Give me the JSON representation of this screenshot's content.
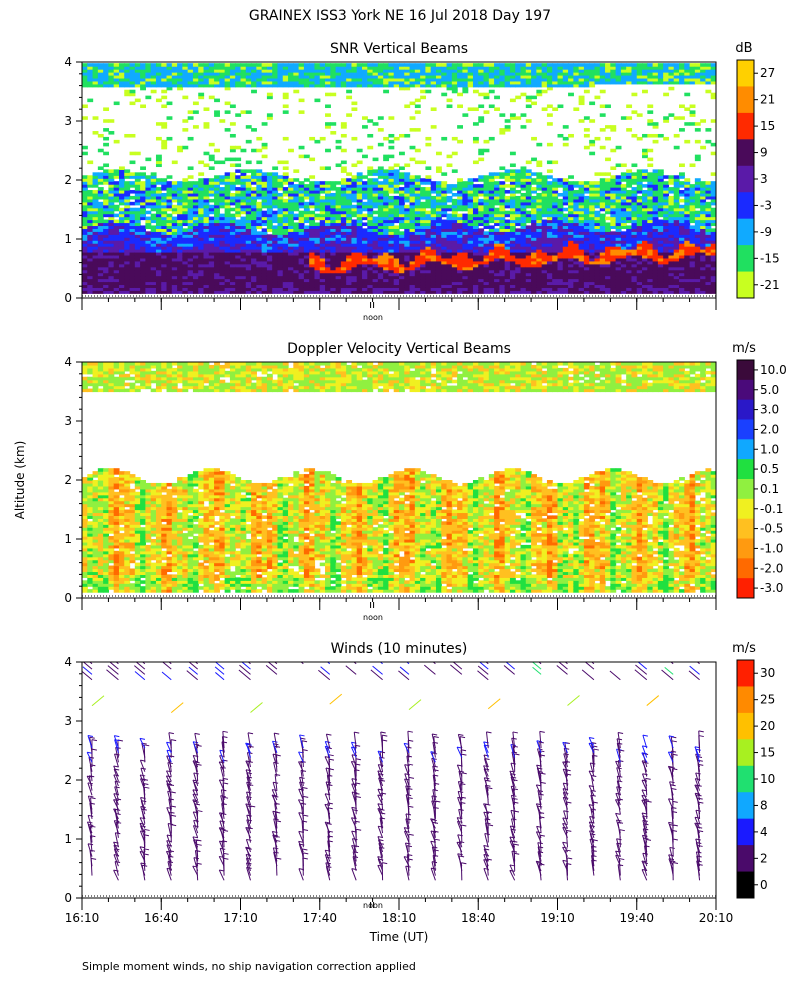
{
  "title": "GRAINEX ISS3 York NE  16 Jul 2018 Day 197",
  "y_axis_label": "Altitude (km)",
  "x_axis_label": "Time (UT)",
  "footnote": "Simple moment winds, no ship navigation correction applied",
  "noon_label": "noon",
  "altitude_ticks": [
    "0",
    "1",
    "2",
    "3",
    "4"
  ],
  "time_ticks": [
    "16:10",
    "16:40",
    "17:10",
    "17:40",
    "18:10",
    "18:40",
    "19:10",
    "19:40",
    "20:10"
  ],
  "chart_data": [
    {
      "type": "heatmap",
      "title": "SNR Vertical Beams",
      "xlabel": "",
      "ylabel": "Altitude (km)",
      "x_range": [
        "16:10",
        "20:10"
      ],
      "ylim": [
        0,
        4
      ],
      "colorbar": {
        "unit": "dB",
        "labels": [
          "27",
          "21",
          "15",
          "9",
          "3",
          "-3",
          "-9",
          "-15",
          "-21"
        ],
        "colors": [
          "#ffd000",
          "#ff8c00",
          "#ff2a00",
          "#4a0a5a",
          "#5a1aa8",
          "#1a2aff",
          "#10aaff",
          "#20e060",
          "#c8ff20"
        ]
      },
      "layers": [
        {
          "altitude_km": [
            0.1,
            0.4
          ],
          "snr_db": 9,
          "note": ""
        },
        {
          "altitude_km": [
            0.4,
            0.7
          ],
          "snr_db": 15
        },
        {
          "altitude_km": [
            0.7,
            1.2
          ],
          "snr_db": 3
        },
        {
          "altitude_km": [
            1.2,
            2.1
          ],
          "snr_db": -15
        },
        {
          "altitude_km": [
            3.6,
            3.95
          ],
          "snr_db": -9
        }
      ]
    },
    {
      "type": "heatmap",
      "title": "Doppler Velocity Vertical Beams",
      "xlabel": "",
      "ylabel": "Altitude (km)",
      "x_range": [
        "16:10",
        "20:10"
      ],
      "ylim": [
        0,
        4
      ],
      "colorbar": {
        "unit": "m/s",
        "labels": [
          "10.0",
          "5.0",
          "3.0",
          "2.0",
          "1.0",
          "0.5",
          "0.1",
          "-0.1",
          "-0.5",
          "-1.0",
          "-2.0",
          "-3.0"
        ],
        "colors": [
          "#3a0a3a",
          "#4a0a7a",
          "#2a18c8",
          "#1a40ff",
          "#10a8ff",
          "#20e040",
          "#90f040",
          "#f0f020",
          "#ffc020",
          "#ff9a10",
          "#ff6a00",
          "#ff2000"
        ]
      },
      "layers": [
        {
          "altitude_km": [
            0.1,
            2.15
          ],
          "velocity_ms": -0.5
        },
        {
          "altitude_km": [
            3.45,
            3.95
          ],
          "velocity_ms": 0.1
        }
      ]
    },
    {
      "type": "scatter",
      "title": "Winds (10 minutes)",
      "xlabel": "Time (UT)",
      "ylabel": "Altitude (km)",
      "x_range": [
        "16:10",
        "20:10"
      ],
      "ylim": [
        0,
        4
      ],
      "colorbar": {
        "unit": "m/s",
        "labels": [
          "30",
          "25",
          "20",
          "15",
          "10",
          "8",
          "4",
          "2",
          "0"
        ],
        "colors": [
          "#ff2000",
          "#ff8a00",
          "#ffc000",
          "#a8f020",
          "#20e070",
          "#10a8ff",
          "#1a1aff",
          "#4a0a6a",
          "#000000"
        ]
      },
      "profile_times": [
        "16:10",
        "16:20",
        "16:30",
        "16:40",
        "16:50",
        "17:00",
        "17:10",
        "17:20",
        "17:30",
        "17:40",
        "17:50",
        "18:00",
        "18:10",
        "18:20",
        "18:30",
        "18:40",
        "18:50",
        "19:00",
        "19:10",
        "19:20",
        "19:30",
        "19:40",
        "19:50",
        "20:00"
      ],
      "levels_km": [
        0.3,
        2.6
      ]
    }
  ]
}
